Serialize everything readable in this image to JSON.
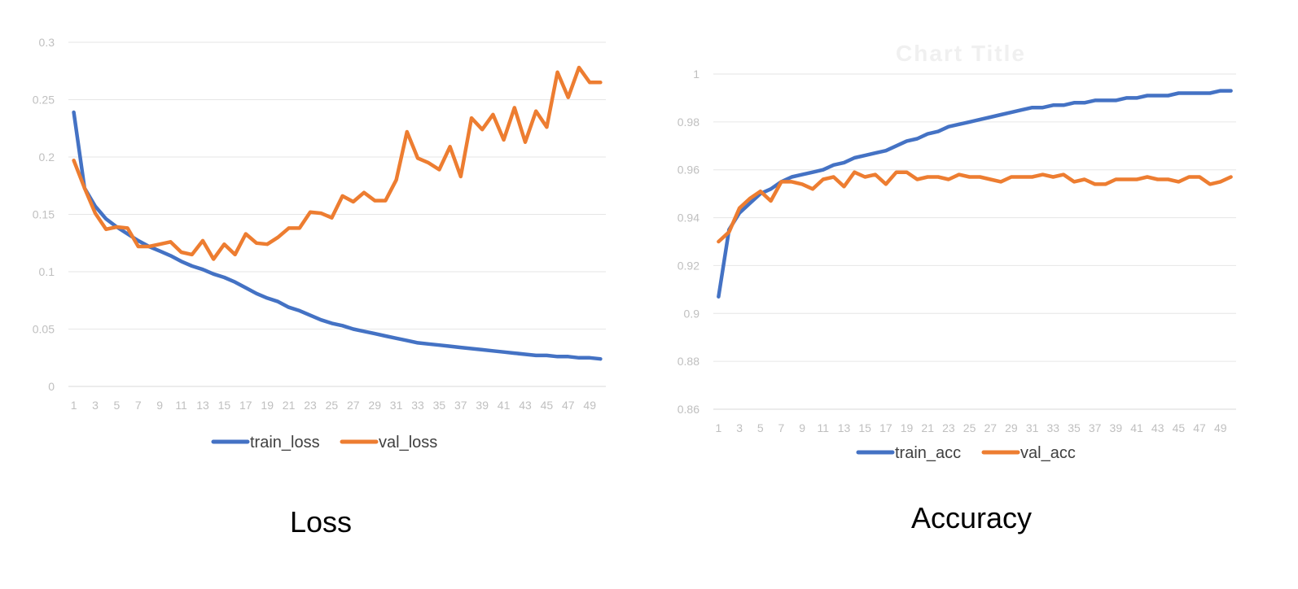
{
  "captions": {
    "left": "Loss",
    "right": "Accuracy"
  },
  "colors": {
    "train": "#4472c4",
    "val": "#ed7d31",
    "grid": "#e6e6e6",
    "tick": "#bfbfbf"
  },
  "chart_data": [
    {
      "type": "line",
      "title": "",
      "xlabel": "",
      "ylabel": "",
      "x": [
        1,
        2,
        3,
        4,
        5,
        6,
        7,
        8,
        9,
        10,
        11,
        12,
        13,
        14,
        15,
        16,
        17,
        18,
        19,
        20,
        21,
        22,
        23,
        24,
        25,
        26,
        27,
        28,
        29,
        30,
        31,
        32,
        33,
        34,
        35,
        36,
        37,
        38,
        39,
        40,
        41,
        42,
        43,
        44,
        45,
        46,
        47,
        48,
        49,
        50
      ],
      "x_tick_labels": [
        "1",
        "3",
        "5",
        "7",
        "9",
        "11",
        "13",
        "15",
        "17",
        "19",
        "21",
        "23",
        "25",
        "27",
        "29",
        "31",
        "33",
        "35",
        "37",
        "39",
        "41",
        "43",
        "45",
        "47",
        "49"
      ],
      "y_tick_labels": [
        "0",
        "0.05",
        "0.1",
        "0.15",
        "0.2",
        "0.25",
        "0.3"
      ],
      "ylim": [
        0,
        0.3
      ],
      "grid": true,
      "legend": "bottom",
      "series": [
        {
          "name": "train_loss",
          "color": "#4472c4",
          "values": [
            0.239,
            0.173,
            0.157,
            0.146,
            0.139,
            0.133,
            0.127,
            0.122,
            0.118,
            0.114,
            0.109,
            0.105,
            0.102,
            0.098,
            0.095,
            0.091,
            0.086,
            0.081,
            0.077,
            0.074,
            0.069,
            0.066,
            0.062,
            0.058,
            0.055,
            0.053,
            0.05,
            0.048,
            0.046,
            0.044,
            0.042,
            0.04,
            0.038,
            0.037,
            0.036,
            0.035,
            0.034,
            0.033,
            0.032,
            0.031,
            0.03,
            0.029,
            0.028,
            0.027,
            0.027,
            0.026,
            0.026,
            0.025,
            0.025,
            0.024
          ]
        },
        {
          "name": "val_loss",
          "color": "#ed7d31",
          "values": [
            0.197,
            0.173,
            0.151,
            0.137,
            0.139,
            0.138,
            0.122,
            0.122,
            0.124,
            0.126,
            0.117,
            0.115,
            0.127,
            0.111,
            0.124,
            0.115,
            0.133,
            0.125,
            0.124,
            0.13,
            0.138,
            0.138,
            0.152,
            0.151,
            0.147,
            0.166,
            0.161,
            0.169,
            0.162,
            0.162,
            0.18,
            0.222,
            0.199,
            0.195,
            0.189,
            0.209,
            0.183,
            0.234,
            0.224,
            0.237,
            0.215,
            0.243,
            0.213,
            0.24,
            0.226,
            0.274,
            0.252,
            0.278,
            0.265,
            0.265
          ]
        }
      ]
    },
    {
      "type": "line",
      "title": "Chart Title",
      "xlabel": "",
      "ylabel": "",
      "x": [
        1,
        2,
        3,
        4,
        5,
        6,
        7,
        8,
        9,
        10,
        11,
        12,
        13,
        14,
        15,
        16,
        17,
        18,
        19,
        20,
        21,
        22,
        23,
        24,
        25,
        26,
        27,
        28,
        29,
        30,
        31,
        32,
        33,
        34,
        35,
        36,
        37,
        38,
        39,
        40,
        41,
        42,
        43,
        44,
        45,
        46,
        47,
        48,
        49,
        50
      ],
      "x_tick_labels": [
        "1",
        "3",
        "5",
        "7",
        "9",
        "11",
        "13",
        "15",
        "17",
        "19",
        "21",
        "23",
        "25",
        "27",
        "29",
        "31",
        "33",
        "35",
        "37",
        "39",
        "41",
        "43",
        "45",
        "47",
        "49"
      ],
      "y_tick_labels": [
        "0.86",
        "0.88",
        "0.9",
        "0.92",
        "0.94",
        "0.96",
        "0.98",
        "1"
      ],
      "ylim": [
        0.86,
        1.0
      ],
      "grid": true,
      "legend": "bottom",
      "series": [
        {
          "name": "train_acc",
          "color": "#4472c4",
          "values": [
            0.907,
            0.935,
            0.942,
            0.946,
            0.95,
            0.952,
            0.955,
            0.957,
            0.958,
            0.959,
            0.96,
            0.962,
            0.963,
            0.965,
            0.966,
            0.967,
            0.968,
            0.97,
            0.972,
            0.973,
            0.975,
            0.976,
            0.978,
            0.979,
            0.98,
            0.981,
            0.982,
            0.983,
            0.984,
            0.985,
            0.986,
            0.986,
            0.987,
            0.987,
            0.988,
            0.988,
            0.989,
            0.989,
            0.989,
            0.99,
            0.99,
            0.991,
            0.991,
            0.991,
            0.992,
            0.992,
            0.992,
            0.992,
            0.993,
            0.993
          ]
        },
        {
          "name": "val_acc",
          "color": "#ed7d31",
          "values": [
            0.93,
            0.934,
            0.944,
            0.948,
            0.951,
            0.947,
            0.955,
            0.955,
            0.954,
            0.952,
            0.956,
            0.957,
            0.953,
            0.959,
            0.957,
            0.958,
            0.954,
            0.959,
            0.959,
            0.956,
            0.957,
            0.957,
            0.956,
            0.958,
            0.957,
            0.957,
            0.956,
            0.955,
            0.957,
            0.957,
            0.957,
            0.958,
            0.957,
            0.958,
            0.955,
            0.956,
            0.954,
            0.954,
            0.956,
            0.956,
            0.956,
            0.957,
            0.956,
            0.956,
            0.955,
            0.957,
            0.957,
            0.954,
            0.955,
            0.957
          ]
        }
      ]
    }
  ]
}
